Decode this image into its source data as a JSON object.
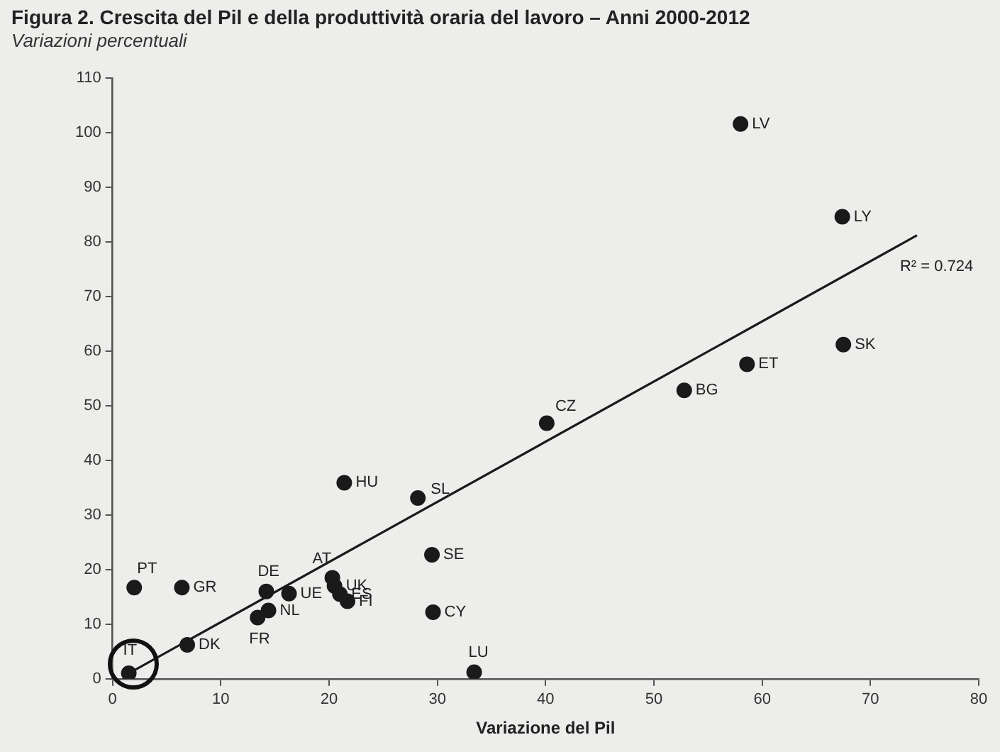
{
  "chart_data": {
    "type": "scatter",
    "title": "Figura 2. Crescita del Pil e della produttività oraria del lavoro – Anni 2000-2012",
    "subtitle": "Variazioni percentuali",
    "xlabel": "Variazione del Pil",
    "xlim": [
      0,
      80
    ],
    "xticks": [
      0,
      10,
      20,
      30,
      40,
      50,
      60,
      70,
      80
    ],
    "ylim": [
      0,
      110
    ],
    "yticks": [
      0,
      10,
      20,
      30,
      40,
      50,
      60,
      70,
      80,
      90,
      100,
      110
    ],
    "grid": false,
    "legend": false,
    "marker": "circle",
    "series": [
      {
        "color": "#1a1a1a",
        "x": [
          1.5,
          2.0,
          6.4,
          6.9,
          14.2,
          16.3,
          14.4,
          13.4,
          20.3,
          20.5,
          21.0,
          21.7,
          21.4,
          28.2,
          29.5,
          29.6,
          33.4,
          40.1,
          52.8,
          58.6,
          67.5,
          67.4,
          58.0
        ],
        "values": [
          1,
          16.7,
          16.7,
          6.2,
          16,
          15.6,
          12.5,
          11.2,
          18.5,
          17,
          15.5,
          14.2,
          35.9,
          33.1,
          22.7,
          12.2,
          1.2,
          46.8,
          52.8,
          57.6,
          61.2,
          84.6,
          101.6
        ]
      },
      {
        "type": "line",
        "color": "#1a1a1a",
        "x": [
          1.5,
          74.3
        ],
        "values": [
          1,
          81.2
        ],
        "marker": "none",
        "line_style": "solid"
      }
    ],
    "annotations": [
      {
        "text": "IT",
        "x": 1.5,
        "y": 1
      },
      {
        "text": "PT",
        "x": 2.0,
        "y": 16.7
      },
      {
        "text": "GR",
        "x": 6.4,
        "y": 16.7
      },
      {
        "text": "DK",
        "x": 6.9,
        "y": 6.2
      },
      {
        "text": "DE",
        "x": 14.2,
        "y": 16
      },
      {
        "text": "UE",
        "x": 16.3,
        "y": 15.6
      },
      {
        "text": "NL",
        "x": 14.4,
        "y": 12.5
      },
      {
        "text": "FR",
        "x": 13.4,
        "y": 11.2
      },
      {
        "text": "AT",
        "x": 20.3,
        "y": 18.5
      },
      {
        "text": "UK",
        "x": 20.5,
        "y": 17
      },
      {
        "text": "ES",
        "x": 21.0,
        "y": 15.5
      },
      {
        "text": "FI",
        "x": 21.7,
        "y": 14.2
      },
      {
        "text": "HU",
        "x": 21.4,
        "y": 35.9
      },
      {
        "text": "SL",
        "x": 28.2,
        "y": 33.1
      },
      {
        "text": "SE",
        "x": 29.5,
        "y": 22.7
      },
      {
        "text": "CY",
        "x": 29.6,
        "y": 12.2
      },
      {
        "text": "LU",
        "x": 33.4,
        "y": 1.2
      },
      {
        "text": "CZ",
        "x": 40.1,
        "y": 46.8
      },
      {
        "text": "BG",
        "x": 52.8,
        "y": 52.8
      },
      {
        "text": "ET",
        "x": 58.6,
        "y": 57.6
      },
      {
        "text": "SK",
        "x": 67.5,
        "y": 61.2
      },
      {
        "text": "LY",
        "x": 67.4,
        "y": 84.6
      },
      {
        "text": "LV",
        "x": 58.0,
        "y": 101.6
      },
      "R² = 0.724"
    ]
  }
}
